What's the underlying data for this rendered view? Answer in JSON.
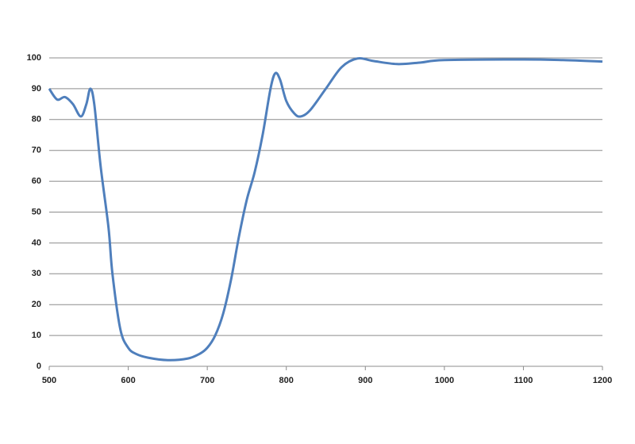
{
  "chart_data": {
    "type": "line",
    "x": [
      500,
      510,
      520,
      530,
      540,
      547,
      552,
      557,
      565,
      575,
      580,
      590,
      600,
      610,
      625,
      650,
      675,
      690,
      700,
      710,
      720,
      730,
      740,
      750,
      760,
      770,
      780,
      786,
      792,
      800,
      810,
      818,
      830,
      850,
      870,
      890,
      910,
      940,
      970,
      1000,
      1100,
      1150,
      1200
    ],
    "series": [
      {
        "color": "#4f7fbc",
        "values": [
          90,
          86.5,
          87.3,
          85,
          81,
          85,
          90,
          85,
          65,
          45,
          30,
          12,
          6,
          4,
          2.8,
          2,
          2.5,
          4,
          6,
          10,
          17,
          28,
          42,
          54,
          63,
          75,
          90,
          95,
          93,
          86,
          82,
          81,
          83,
          90,
          97,
          99.8,
          99,
          98,
          98.5,
          99.3,
          99.5,
          99.3,
          98.8
        ]
      }
    ],
    "xlim": [
      500,
      1200
    ],
    "xticks": [
      500,
      600,
      700,
      800,
      900,
      1000,
      1100,
      1200
    ],
    "ylim": [
      0,
      100
    ],
    "yticks": [
      0,
      10,
      20,
      30,
      40,
      50,
      60,
      70,
      80,
      90,
      100
    ],
    "grid": true
  }
}
